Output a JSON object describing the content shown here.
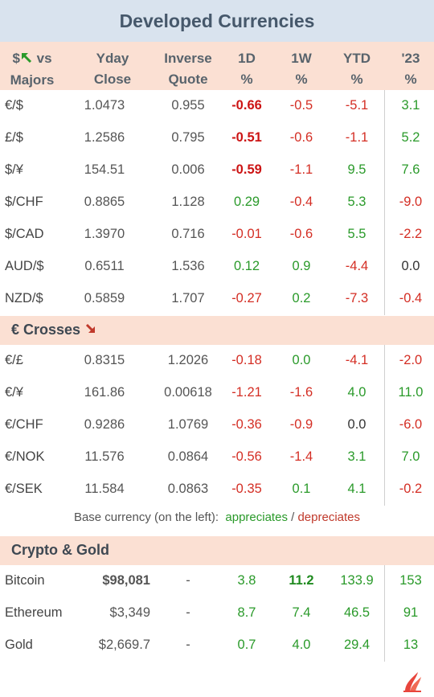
{
  "title": "Developed Currencies",
  "header": {
    "pair_prefix": "$",
    "pair_suffix": "vs",
    "pair_line2": "Majors",
    "yday_1": "Yday",
    "yday_2": "Close",
    "inv_1": "Inverse",
    "inv_2": "Quote",
    "d1_1": "1D",
    "d1_2": "%",
    "w1_1": "1W",
    "w1_2": "%",
    "ytd_1": "YTD",
    "ytd_2": "%",
    "y23_1": "'23",
    "y23_2": "%"
  },
  "majors": [
    {
      "pair": "€/$",
      "close": "1.0473",
      "inverse": "0.955",
      "d1": "-0.66",
      "w1": "-0.5",
      "ytd": "-5.1",
      "y23": "3.1"
    },
    {
      "pair": "£/$",
      "close": "1.2586",
      "inverse": "0.795",
      "d1": "-0.51",
      "w1": "-0.6",
      "ytd": "-1.1",
      "y23": "5.2"
    },
    {
      "pair": "$/¥",
      "close": "154.51",
      "inverse": "0.006",
      "d1": "-0.59",
      "w1": "-1.1",
      "ytd": "9.5",
      "y23": "7.6"
    },
    {
      "pair": "$/CHF",
      "close": "0.8865",
      "inverse": "1.128",
      "d1": "0.29",
      "w1": "-0.4",
      "ytd": "5.3",
      "y23": "-9.0"
    },
    {
      "pair": "$/CAD",
      "close": "1.3970",
      "inverse": "0.716",
      "d1": "-0.01",
      "w1": "-0.6",
      "ytd": "5.5",
      "y23": "-2.2"
    },
    {
      "pair": "AUD/$",
      "close": "0.6511",
      "inverse": "1.536",
      "d1": "0.12",
      "w1": "0.9",
      "ytd": "-4.4",
      "y23": "0.0"
    },
    {
      "pair": "NZD/$",
      "close": "0.5859",
      "inverse": "1.707",
      "d1": "-0.27",
      "w1": "0.2",
      "ytd": "-7.3",
      "y23": "-0.4"
    }
  ],
  "crosses_label": "€ Crosses",
  "crosses": [
    {
      "pair": "€/£",
      "close": "0.8315",
      "inverse": "1.2026",
      "d1": "-0.18",
      "w1": "0.0",
      "ytd": "-4.1",
      "y23": "-2.0"
    },
    {
      "pair": "€/¥",
      "close": "161.86",
      "inverse": "0.00618",
      "d1": "-1.21",
      "w1": "-1.6",
      "ytd": "4.0",
      "y23": "11.0"
    },
    {
      "pair": "€/CHF",
      "close": "0.9286",
      "inverse": "1.0769",
      "d1": "-0.36",
      "w1": "-0.9",
      "ytd": "0.0",
      "y23": "-6.0"
    },
    {
      "pair": "€/NOK",
      "close": "11.576",
      "inverse": "0.0864",
      "d1": "-0.56",
      "w1": "-1.4",
      "ytd": "3.1",
      "y23": "7.0"
    },
    {
      "pair": "€/SEK",
      "close": "11.584",
      "inverse": "0.0863",
      "d1": "-0.35",
      "w1": "0.1",
      "ytd": "4.1",
      "y23": "-0.2"
    }
  ],
  "legend": {
    "prefix": "Base currency (on the left):",
    "up": "appreciates",
    "sep": "/",
    "down": "depreciates"
  },
  "crypto_label": "Crypto & Gold",
  "crypto": [
    {
      "name": "Bitcoin",
      "close": "$98,081",
      "inverse": "-",
      "d1": "3.8",
      "w1": "11.2",
      "ytd": "133.9",
      "y23": "153"
    },
    {
      "name": "Ethereum",
      "close": "$3,349",
      "inverse": "-",
      "d1": "8.7",
      "w1": "7.4",
      "ytd": "46.5",
      "y23": "91"
    },
    {
      "name": "Gold",
      "close": "$2,669.7",
      "inverse": "-",
      "d1": "0.7",
      "w1": "4.0",
      "ytd": "29.4",
      "y23": "13"
    }
  ],
  "colors": {
    "positive": "#2a9a2a",
    "negative": "#d42e24",
    "header_band": "#fbe0d3",
    "title_band": "#d9e3ee"
  },
  "icons": {
    "header_arrow": "green-up-left-arrow-icon",
    "crosses_arrow": "red-down-right-arrow-icon",
    "brand_logo": "flame-logo"
  }
}
